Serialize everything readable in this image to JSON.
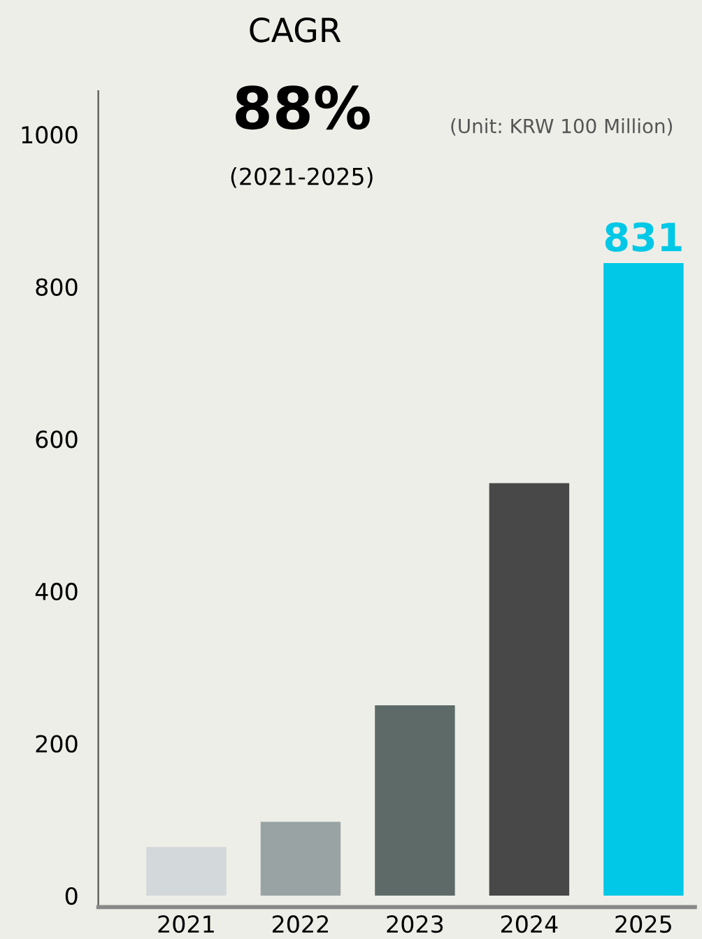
{
  "chart_data": {
    "type": "bar",
    "categories": [
      "2021",
      "2022",
      "2023",
      "2024",
      "2025"
    ],
    "values": [
      64,
      97,
      250,
      542,
      831
    ],
    "colors": [
      "#d3d8da",
      "#9aa3a3",
      "#5e6a68",
      "#484848",
      "#00c8e6"
    ],
    "value_labels": [
      null,
      null,
      null,
      null,
      "831"
    ],
    "ylim": [
      -15,
      1057
    ],
    "yticks": [
      0,
      200,
      400,
      600,
      800,
      1000
    ],
    "grid": false,
    "legend": false,
    "annotations": [
      "CAGR",
      "88%",
      "(2021-2025)",
      "(Unit: KRW 100 Million)"
    ]
  }
}
